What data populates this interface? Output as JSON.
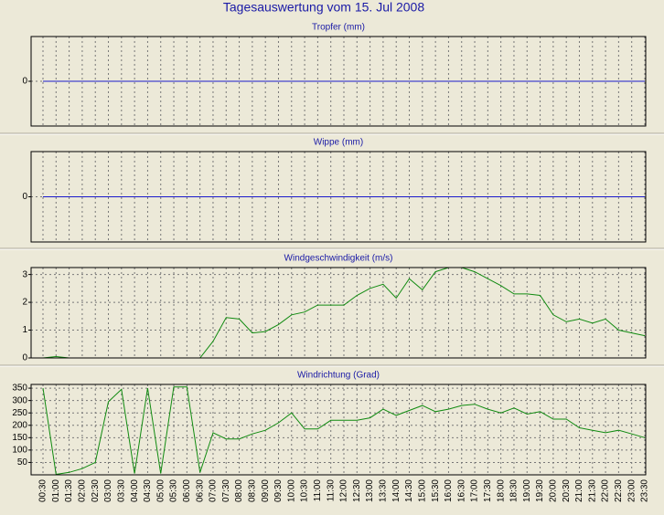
{
  "title": "Tagesauswertung vom 15. Jul 2008",
  "chart_data": [
    {
      "type": "line",
      "title": "Tropfer (mm)",
      "ylim": [
        -1,
        1
      ],
      "yticks": [
        0
      ],
      "grid": true,
      "series": [
        {
          "color": "#1a1acc",
          "values": [
            0,
            0,
            0,
            0,
            0,
            0,
            0,
            0,
            0,
            0,
            0,
            0,
            0,
            0,
            0,
            0,
            0,
            0,
            0,
            0,
            0,
            0,
            0,
            0,
            0,
            0,
            0,
            0,
            0,
            0,
            0,
            0,
            0,
            0,
            0,
            0,
            0,
            0,
            0,
            0,
            0,
            0,
            0,
            0,
            0,
            0,
            0
          ]
        }
      ]
    },
    {
      "type": "line",
      "title": "Wippe (mm)",
      "ylim": [
        -1,
        1
      ],
      "yticks": [
        0
      ],
      "grid": true,
      "series": [
        {
          "color": "#1a1acc",
          "values": [
            0,
            0,
            0,
            0,
            0,
            0,
            0,
            0,
            0,
            0,
            0,
            0,
            0,
            0,
            0,
            0,
            0,
            0,
            0,
            0,
            0,
            0,
            0,
            0,
            0,
            0,
            0,
            0,
            0,
            0,
            0,
            0,
            0,
            0,
            0,
            0,
            0,
            0,
            0,
            0,
            0,
            0,
            0,
            0,
            0,
            0,
            0
          ]
        }
      ]
    },
    {
      "type": "line",
      "title": "Windgeschwindigkeit (m/s)",
      "ylim": [
        0,
        3.25
      ],
      "yticks": [
        0,
        1,
        2,
        3
      ],
      "grid": true,
      "series": [
        {
          "color": "#108a10",
          "values": [
            0,
            0.05,
            0,
            0,
            0,
            0,
            0,
            0,
            0,
            0,
            0,
            0,
            0,
            0.6,
            1.45,
            1.4,
            0.9,
            0.95,
            1.2,
            1.55,
            1.65,
            1.9,
            1.9,
            1.9,
            2.25,
            2.5,
            2.65,
            2.15,
            2.85,
            2.45,
            3.1,
            3.25,
            3.25,
            3.1,
            2.85,
            2.6,
            2.3,
            2.3,
            2.25,
            1.55,
            1.3,
            1.4,
            1.25,
            1.4,
            1.0,
            0.9,
            0.8
          ]
        }
      ]
    },
    {
      "type": "line",
      "title": "Windrichtung (Grad)",
      "ylim": [
        0,
        365
      ],
      "yticks": [
        50,
        100,
        150,
        200,
        250,
        300,
        350
      ],
      "grid": true,
      "categories": [
        "00:30",
        "01:00",
        "01:30",
        "02:00",
        "02:30",
        "03:00",
        "03:30",
        "04:00",
        "04:30",
        "05:00",
        "05:30",
        "06:00",
        "06:30",
        "07:00",
        "07:30",
        "08:00",
        "08:30",
        "09:00",
        "09:30",
        "10:00",
        "10:30",
        "11:00",
        "11:30",
        "12:00",
        "12:30",
        "13:00",
        "13:30",
        "14:00",
        "14:30",
        "15:00",
        "15:30",
        "16:00",
        "16:30",
        "17:00",
        "17:30",
        "18:00",
        "18:30",
        "19:00",
        "19:30",
        "20:00",
        "20:30",
        "21:00",
        "21:30",
        "22:00",
        "22:30",
        "23:00",
        "23:30"
      ],
      "series": [
        {
          "color": "#108a10",
          "values": [
            350,
            2,
            10,
            25,
            50,
            295,
            345,
            5,
            350,
            5,
            355,
            355,
            10,
            170,
            145,
            145,
            165,
            180,
            210,
            250,
            185,
            185,
            220,
            220,
            220,
            230,
            265,
            240,
            260,
            280,
            255,
            265,
            280,
            285,
            265,
            250,
            270,
            245,
            255,
            225,
            225,
            190,
            180,
            170,
            180,
            165,
            150
          ]
        }
      ]
    }
  ]
}
